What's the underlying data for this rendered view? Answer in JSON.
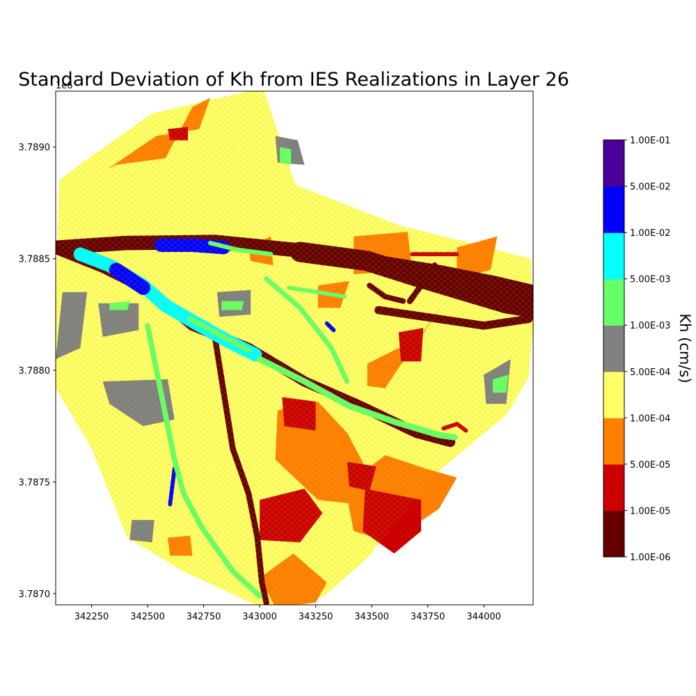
{
  "chart_data": {
    "type": "heatmap",
    "title": "Standard Deviation of Kh from IES Realizations in Layer 26",
    "offset_label": "1e6",
    "xlim": [
      342090,
      344220
    ],
    "ylim": [
      3786950,
      3789250
    ],
    "x_ticks": [
      342250,
      342500,
      342750,
      343000,
      343250,
      343500,
      343750,
      344000
    ],
    "y_ticks": [
      {
        "value": 3787000,
        "label": "3.7870"
      },
      {
        "value": 3787500,
        "label": "3.7875"
      },
      {
        "value": 3788000,
        "label": "3.7880"
      },
      {
        "value": 3788500,
        "label": "3.7885"
      },
      {
        "value": 3789000,
        "label": "3.7890"
      }
    ],
    "colorbar": {
      "label": "Kh (cm/s)",
      "boundaries": [
        "1.00E-06",
        "1.00E-05",
        "5.00E-05",
        "1.00E-04",
        "5.00E-04",
        "1.00E-03",
        "5.00E-03",
        "1.00E-02",
        "5.00E-02",
        "1.00E-01"
      ],
      "colors": [
        "#660000",
        "#cc0000",
        "#ff7f00",
        "#ffff66",
        "#808080",
        "#66ff66",
        "#00ffff",
        "#0000ff",
        "#4c0099"
      ]
    },
    "domain_outline": [
      [
        342105,
        3788850
      ],
      [
        342210,
        3788930
      ],
      [
        342520,
        3789150
      ],
      [
        342950,
        3789250
      ],
      [
        343020,
        3789250
      ],
      [
        343160,
        3788830
      ],
      [
        343620,
        3788650
      ],
      [
        343900,
        3788580
      ],
      [
        344210,
        3788500
      ],
      [
        344220,
        3788200
      ],
      [
        344200,
        3787970
      ],
      [
        344100,
        3787800
      ],
      [
        343800,
        3787550
      ],
      [
        343480,
        3787160
      ],
      [
        343300,
        3787000
      ],
      [
        343110,
        3786900
      ],
      [
        342960,
        3786960
      ],
      [
        342660,
        3787100
      ],
      [
        342410,
        3787250
      ],
      [
        342250,
        3787650
      ],
      [
        342090,
        3787920
      ],
      [
        342090,
        3788300
      ]
    ],
    "zones": [
      {
        "class": 2,
        "points": [
          [
            342320,
            3788900
          ],
          [
            342540,
            3789050
          ],
          [
            342730,
            3789080
          ],
          [
            342780,
            3789220
          ],
          [
            342700,
            3789180
          ],
          [
            342580,
            3788950
          ],
          [
            342360,
            3788920
          ]
        ]
      },
      {
        "class": 2,
        "points": [
          [
            342950,
            3788550
          ],
          [
            343050,
            3788600
          ],
          [
            343060,
            3788470
          ],
          [
            342960,
            3788490
          ]
        ]
      },
      {
        "class": 2,
        "points": [
          [
            343420,
            3788600
          ],
          [
            343660,
            3788620
          ],
          [
            343680,
            3788450
          ],
          [
            343420,
            3788430
          ]
        ]
      },
      {
        "class": 2,
        "points": [
          [
            343880,
            3788550
          ],
          [
            344060,
            3788600
          ],
          [
            344030,
            3788450
          ],
          [
            343880,
            3788410
          ]
        ]
      },
      {
        "class": 2,
        "points": [
          [
            343260,
            3788380
          ],
          [
            343400,
            3788400
          ],
          [
            343360,
            3788280
          ],
          [
            343260,
            3788280
          ]
        ]
      },
      {
        "class": 2,
        "points": [
          [
            343480,
            3788030
          ],
          [
            343720,
            3788150
          ],
          [
            343820,
            3788300
          ],
          [
            343680,
            3788100
          ],
          [
            343560,
            3787920
          ],
          [
            343480,
            3787930
          ]
        ]
      },
      {
        "class": 2,
        "points": [
          [
            343080,
            3787820
          ],
          [
            343260,
            3787860
          ],
          [
            343390,
            3787720
          ],
          [
            343480,
            3787550
          ],
          [
            343440,
            3787400
          ],
          [
            343260,
            3787420
          ],
          [
            343070,
            3787600
          ]
        ]
      },
      {
        "class": 2,
        "points": [
          [
            343380,
            3787480
          ],
          [
            343560,
            3787620
          ],
          [
            343740,
            3787560
          ],
          [
            343880,
            3787520
          ],
          [
            343800,
            3787380
          ],
          [
            343580,
            3787230
          ],
          [
            343420,
            3787280
          ]
        ]
      },
      {
        "class": 2,
        "points": [
          [
            343000,
            3787070
          ],
          [
            343150,
            3787180
          ],
          [
            343300,
            3787050
          ],
          [
            343250,
            3786960
          ],
          [
            343070,
            3786940
          ]
        ]
      },
      {
        "class": 2,
        "points": [
          [
            342590,
            3787250
          ],
          [
            342690,
            3787260
          ],
          [
            342700,
            3787170
          ],
          [
            342600,
            3787170
          ]
        ]
      },
      {
        "class": 1,
        "points": [
          [
            343100,
            3787880
          ],
          [
            343250,
            3787860
          ],
          [
            343250,
            3787730
          ],
          [
            343110,
            3787750
          ]
        ]
      },
      {
        "class": 1,
        "points": [
          [
            343390,
            3787590
          ],
          [
            343520,
            3787570
          ],
          [
            343490,
            3787460
          ],
          [
            343400,
            3787480
          ]
        ]
      },
      {
        "class": 1,
        "points": [
          [
            343470,
            3787470
          ],
          [
            343720,
            3787420
          ],
          [
            343720,
            3787280
          ],
          [
            343600,
            3787180
          ],
          [
            343460,
            3787280
          ]
        ]
      },
      {
        "class": 1,
        "points": [
          [
            343000,
            3787420
          ],
          [
            343200,
            3787470
          ],
          [
            343280,
            3787360
          ],
          [
            343180,
            3787230
          ],
          [
            343000,
            3787240
          ]
        ]
      },
      {
        "class": 1,
        "points": [
          [
            343620,
            3788170
          ],
          [
            343730,
            3788190
          ],
          [
            343720,
            3788040
          ],
          [
            343630,
            3788040
          ]
        ]
      },
      {
        "class": 1,
        "points": [
          [
            342590,
            3789080
          ],
          [
            342680,
            3789090
          ],
          [
            342680,
            3789030
          ],
          [
            342600,
            3789030
          ]
        ]
      },
      {
        "class": 4,
        "points": [
          [
            342120,
            3788350
          ],
          [
            342230,
            3788350
          ],
          [
            342200,
            3788100
          ],
          [
            342090,
            3788050
          ]
        ]
      },
      {
        "class": 4,
        "points": [
          [
            342280,
            3788300
          ],
          [
            342460,
            3788300
          ],
          [
            342460,
            3788180
          ],
          [
            342300,
            3788150
          ]
        ]
      },
      {
        "class": 4,
        "points": [
          [
            342300,
            3787950
          ],
          [
            342590,
            3787960
          ],
          [
            342620,
            3787780
          ],
          [
            342480,
            3787750
          ],
          [
            342330,
            3787850
          ]
        ]
      },
      {
        "class": 4,
        "points": [
          [
            342810,
            3788350
          ],
          [
            342960,
            3788360
          ],
          [
            342960,
            3788250
          ],
          [
            342820,
            3788240
          ]
        ]
      },
      {
        "class": 4,
        "points": [
          [
            342430,
            3787330
          ],
          [
            342530,
            3787330
          ],
          [
            342520,
            3787230
          ],
          [
            342420,
            3787240
          ]
        ]
      },
      {
        "class": 4,
        "points": [
          [
            343070,
            3789050
          ],
          [
            343170,
            3789030
          ],
          [
            343200,
            3788920
          ],
          [
            343080,
            3788930
          ]
        ]
      },
      {
        "class": 4,
        "points": [
          [
            344000,
            3787980
          ],
          [
            344120,
            3788050
          ],
          [
            344100,
            3787850
          ],
          [
            344010,
            3787850
          ]
        ]
      },
      {
        "class": 5,
        "points": [
          [
            343090,
            3789000
          ],
          [
            343140,
            3788990
          ],
          [
            343140,
            3788920
          ],
          [
            343090,
            3788930
          ]
        ]
      },
      {
        "class": 5,
        "points": [
          [
            342330,
            3788300
          ],
          [
            342420,
            3788310
          ],
          [
            342410,
            3788270
          ],
          [
            342330,
            3788270
          ]
        ]
      },
      {
        "class": 5,
        "points": [
          [
            342830,
            3788310
          ],
          [
            342930,
            3788310
          ],
          [
            342920,
            3788270
          ],
          [
            342830,
            3788270
          ]
        ]
      },
      {
        "class": 5,
        "points": [
          [
            344040,
            3787960
          ],
          [
            344110,
            3787980
          ],
          [
            344100,
            3787900
          ],
          [
            344040,
            3787900
          ]
        ]
      }
    ],
    "channels": [
      {
        "class": 0,
        "width": 3.2,
        "points": [
          [
            342100,
            3788550
          ],
          [
            342400,
            3788570
          ],
          [
            342800,
            3788575
          ],
          [
            343050,
            3788550
          ],
          [
            343350,
            3788520
          ],
          [
            343550,
            3788480
          ],
          [
            343800,
            3788440
          ],
          [
            344050,
            3788390
          ],
          [
            344220,
            3788350
          ]
        ]
      },
      {
        "class": 0,
        "width": 4.5,
        "points": [
          [
            343180,
            3788530
          ],
          [
            343480,
            3788490
          ],
          [
            343700,
            3788420
          ],
          [
            343900,
            3788360
          ],
          [
            344100,
            3788300
          ],
          [
            344220,
            3788280
          ]
        ]
      },
      {
        "class": 0,
        "width": 1.8,
        "points": [
          [
            343530,
            3788270
          ],
          [
            343800,
            3788230
          ],
          [
            344000,
            3788200
          ],
          [
            344200,
            3788230
          ]
        ]
      },
      {
        "class": 0,
        "width": 2.3,
        "points": [
          [
            342100,
            3788540
          ],
          [
            342300,
            3788460
          ],
          [
            342520,
            3788350
          ],
          [
            342700,
            3788200
          ],
          [
            342950,
            3788100
          ],
          [
            343200,
            3787950
          ],
          [
            343450,
            3787840
          ],
          [
            343700,
            3787720
          ],
          [
            343850,
            3787680
          ]
        ]
      },
      {
        "class": 0,
        "width": 1.3,
        "points": [
          [
            342800,
            3788150
          ],
          [
            342840,
            3787900
          ],
          [
            342880,
            3787650
          ],
          [
            342950,
            3787450
          ],
          [
            342990,
            3787250
          ],
          [
            343010,
            3787050
          ],
          [
            343030,
            3786960
          ]
        ]
      },
      {
        "class": 0,
        "width": 1.3,
        "points": [
          [
            343670,
            3788310
          ],
          [
            343720,
            3788380
          ],
          [
            343780,
            3788470
          ]
        ]
      },
      {
        "class": 0,
        "width": 1.2,
        "points": [
          [
            343490,
            3788380
          ],
          [
            343560,
            3788330
          ],
          [
            343640,
            3788310
          ]
        ]
      },
      {
        "class": 1,
        "width": 0.9,
        "points": [
          [
            343680,
            3788520
          ],
          [
            343800,
            3788520
          ],
          [
            343880,
            3788520
          ]
        ]
      },
      {
        "class": 1,
        "width": 0.9,
        "points": [
          [
            343820,
            3787740
          ],
          [
            343880,
            3787760
          ],
          [
            343920,
            3787730
          ]
        ]
      },
      {
        "class": 6,
        "width": 3.0,
        "points": [
          [
            342200,
            3788520
          ],
          [
            342330,
            3788470
          ],
          [
            342480,
            3788380
          ],
          [
            342580,
            3788290
          ],
          [
            342700,
            3788220
          ],
          [
            342860,
            3788130
          ],
          [
            342980,
            3788070
          ]
        ]
      },
      {
        "class": 7,
        "width": 3.0,
        "points": [
          [
            342560,
            3788560
          ],
          [
            342700,
            3788560
          ],
          [
            342840,
            3788550
          ]
        ]
      },
      {
        "class": 7,
        "width": 3.2,
        "points": [
          [
            342360,
            3788450
          ],
          [
            342480,
            3788370
          ]
        ]
      },
      {
        "class": 7,
        "width": 0.9,
        "points": [
          [
            343300,
            3788210
          ],
          [
            343330,
            3788180
          ]
        ]
      },
      {
        "class": 7,
        "width": 0.9,
        "points": [
          [
            342600,
            3787400
          ],
          [
            342620,
            3787560
          ]
        ]
      },
      {
        "class": 5,
        "width": 1.4,
        "points": [
          [
            343000,
            3788050
          ],
          [
            343200,
            3787950
          ],
          [
            343400,
            3787840
          ],
          [
            343600,
            3787770
          ],
          [
            343800,
            3787710
          ],
          [
            343870,
            3787700
          ]
        ]
      },
      {
        "class": 5,
        "width": 1.2,
        "points": [
          [
            342690,
            3788230
          ],
          [
            342950,
            3788090
          ]
        ]
      },
      {
        "class": 5,
        "width": 1.2,
        "points": [
          [
            342500,
            3788200
          ],
          [
            342540,
            3788000
          ],
          [
            342580,
            3787800
          ],
          [
            342620,
            3787600
          ],
          [
            342660,
            3787450
          ],
          [
            342740,
            3787300
          ],
          [
            342880,
            3787100
          ],
          [
            343000,
            3786990
          ]
        ]
      },
      {
        "class": 5,
        "width": 1.1,
        "points": [
          [
            343030,
            3788410
          ],
          [
            343180,
            3788280
          ],
          [
            343320,
            3788100
          ],
          [
            343390,
            3787950
          ]
        ]
      },
      {
        "class": 5,
        "width": 1.0,
        "points": [
          [
            342780,
            3788570
          ],
          [
            342900,
            3788540
          ],
          [
            343050,
            3788520
          ]
        ]
      },
      {
        "class": 5,
        "width": 0.9,
        "points": [
          [
            343130,
            3788370
          ],
          [
            343260,
            3788350
          ],
          [
            343380,
            3788330
          ]
        ]
      }
    ]
  }
}
